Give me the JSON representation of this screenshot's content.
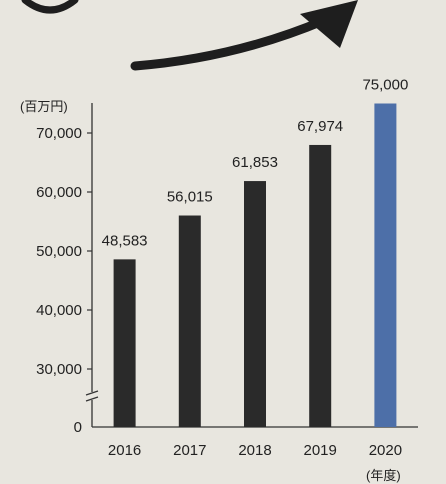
{
  "chart_data": {
    "type": "bar",
    "unit_label": "(百万円)",
    "x_unit_label": "(年度)",
    "categories": [
      "2016",
      "2017",
      "2018",
      "2019",
      "2020"
    ],
    "values": [
      48583,
      56015,
      61853,
      67974,
      75000
    ],
    "value_labels": [
      "48,583",
      "56,015",
      "61,853",
      "67,974",
      "75,000"
    ],
    "y_ticks": [
      "0",
      "30,000",
      "40,000",
      "50,000",
      "60,000",
      "70,000"
    ],
    "y_tick_values": [
      0,
      30000,
      40000,
      50000,
      60000,
      70000
    ],
    "ylim": [
      0,
      70000
    ],
    "axis_break": true,
    "colors": {
      "bar": "#2a2a2a",
      "highlight_bar": "#4d6fa8",
      "background": "#e8e6df",
      "text": "#222222",
      "arrow": "#1e1e1e"
    },
    "highlight_index": 4,
    "decoration": "upward-trend-arrow"
  }
}
